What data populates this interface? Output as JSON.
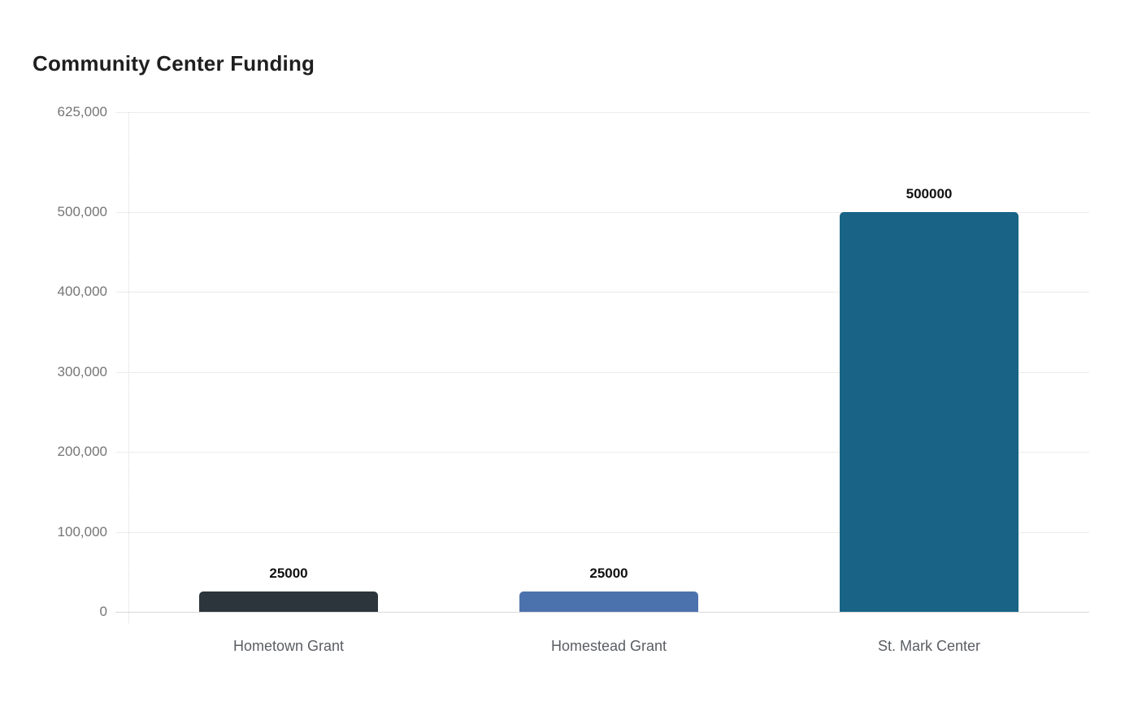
{
  "title": "Community Center Funding",
  "chart_data": {
    "type": "bar",
    "title": "Community Center Funding",
    "categories": [
      "Hometown Grant",
      "Homestead Grant",
      "St. Mark Center"
    ],
    "values": [
      25000,
      25000,
      500000
    ],
    "value_labels": [
      "25000",
      "25000",
      "500000"
    ],
    "bar_colors": [
      "#2b353b",
      "#4c72ae",
      "#196387"
    ],
    "y_ticks": [
      {
        "value": 625000,
        "label": "625,000"
      },
      {
        "value": 500000,
        "label": "500,000"
      },
      {
        "value": 400000,
        "label": "400,000"
      },
      {
        "value": 300000,
        "label": "300,000"
      },
      {
        "value": 200000,
        "label": "200,000"
      },
      {
        "value": 100000,
        "label": "100,000"
      },
      {
        "value": 0,
        "label": "0"
      }
    ],
    "ylim": [
      0,
      625000
    ],
    "xlabel": "",
    "ylabel": "",
    "grid": true,
    "legend": false,
    "colors": {
      "grid_line": "#ececec",
      "zero_line": "#d9d9d9",
      "axis_line": "#d9d9d9",
      "tick_label": "#757575",
      "category_label": "#5a5e63",
      "value_label": "#111111",
      "title": "#1f1f1f",
      "background": "#ffffff"
    }
  }
}
